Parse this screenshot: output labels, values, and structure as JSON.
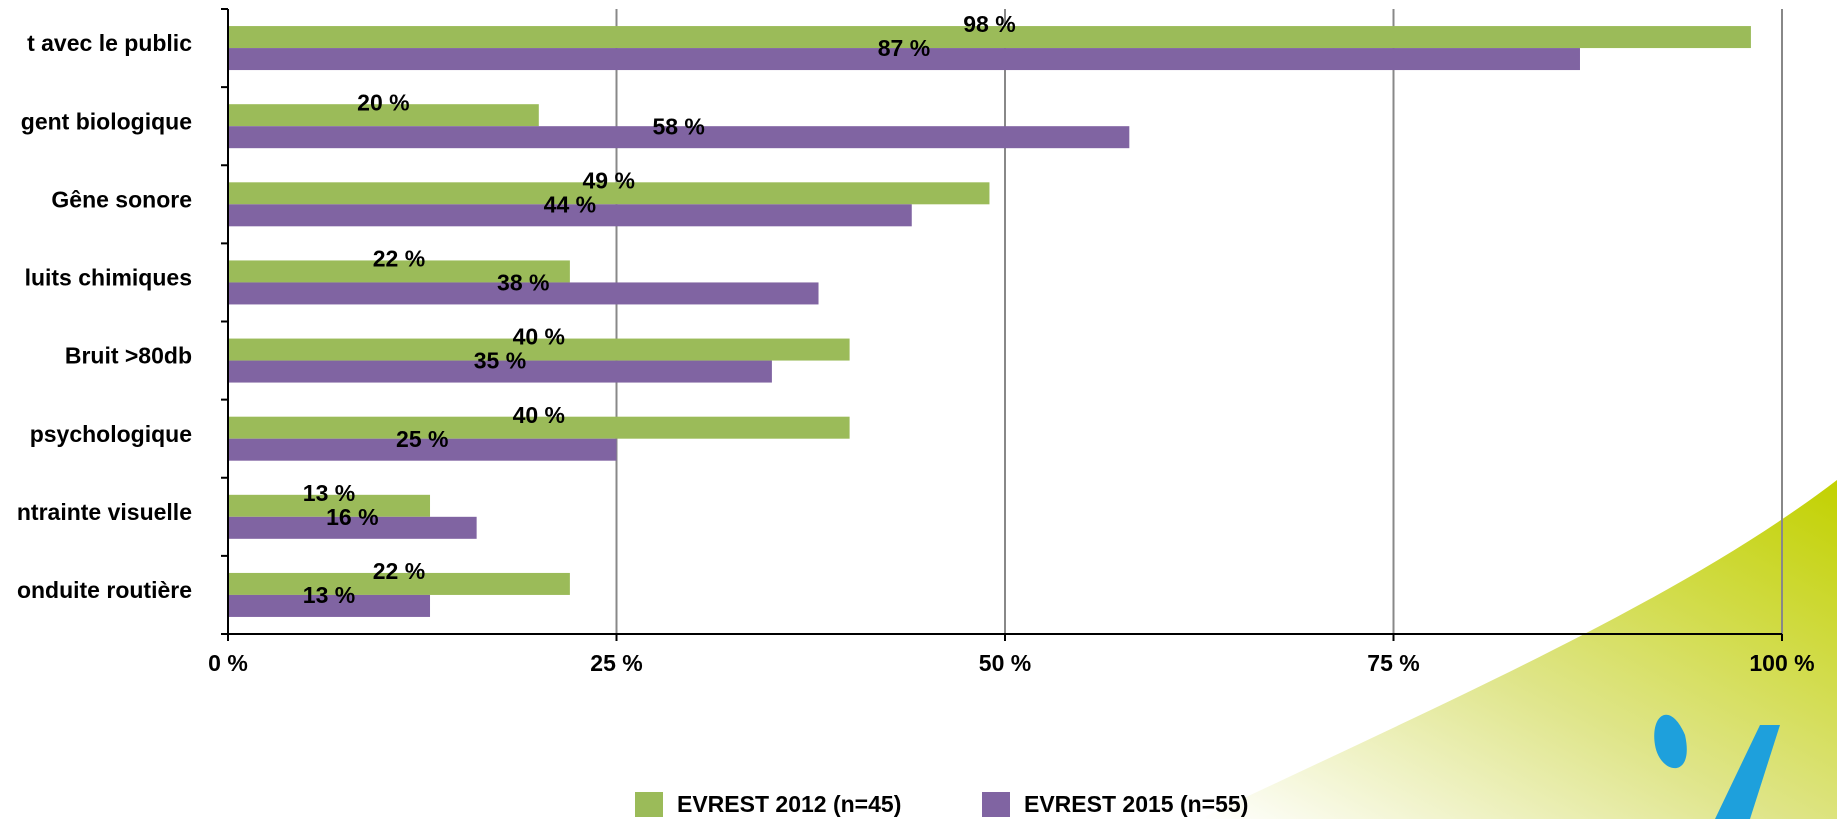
{
  "chart_data": {
    "type": "bar",
    "orientation": "horizontal",
    "categories": [
      "t avec le public",
      "gent biologique",
      "Gêne sonore",
      "luits chimiques",
      "Bruit >80db",
      "psychologique",
      "ntrainte visuelle",
      "onduite routière"
    ],
    "series": [
      {
        "name": "EVREST 2012 (n=45)",
        "color": "#9bbb59",
        "values": [
          98,
          20,
          49,
          22,
          40,
          40,
          13,
          22
        ],
        "value_labels": [
          "98 %",
          "20 %",
          "49 %",
          "22 %",
          "40 %",
          "40 %",
          "13 %",
          "22 %"
        ]
      },
      {
        "name": "EVREST 2015 (n=55)",
        "color": "#8064a2",
        "values": [
          87,
          58,
          44,
          38,
          35,
          25,
          16,
          13
        ],
        "value_labels": [
          "87 %",
          "58 %",
          "44 %",
          "38 %",
          "35 %",
          "25 %",
          "16 %",
          "13 %"
        ]
      }
    ],
    "xlim": [
      0,
      100
    ],
    "xticks": [
      {
        "value": 0,
        "label": "0 %"
      },
      {
        "value": 25,
        "label": "25 %"
      },
      {
        "value": 50,
        "label": "50 %"
      },
      {
        "value": 75,
        "label": "75 %"
      },
      {
        "value": 100,
        "label": "100 %"
      }
    ],
    "grid": true,
    "legend": "bottom"
  }
}
